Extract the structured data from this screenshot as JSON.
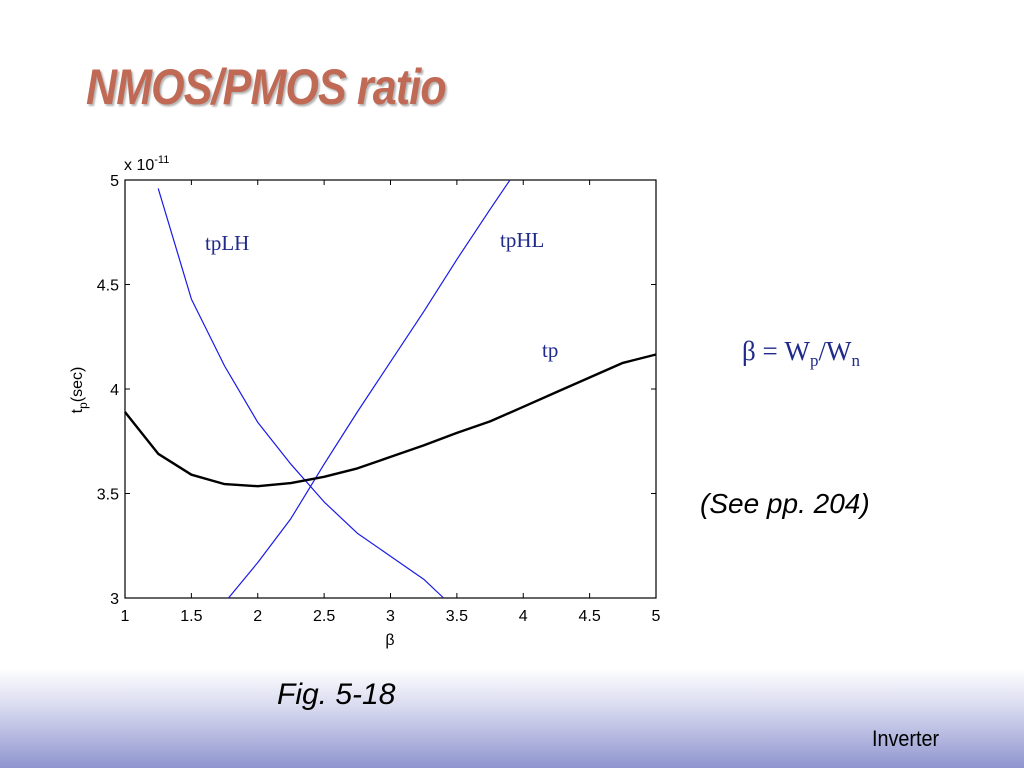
{
  "slide": {
    "title": "NMOS/PMOS ratio",
    "formula": {
      "beta": "β",
      "equals": " = ",
      "w1": "W",
      "sub1": "p",
      "slash": "/",
      "w2": "W",
      "sub2": "n"
    },
    "note": "(See pp. 204)",
    "caption": "Fig. 5-18",
    "footer": "Inverter",
    "colors": {
      "title": "#c06a55",
      "annotation": "#1f2a8a",
      "series_thin": "#1a1ae6",
      "series_thick": "#000000"
    }
  },
  "chart_data": {
    "type": "line",
    "xlabel": "β",
    "ylabel_main": "t",
    "ylabel_sub": "p",
    "ylabel_tail": "(sec)",
    "multiplier_base": "x 10",
    "multiplier_exp": "-11",
    "xlim": [
      1,
      5
    ],
    "ylim": [
      3,
      5
    ],
    "x_ticks": [
      "1",
      "1.5",
      "2",
      "2.5",
      "3",
      "3.5",
      "4",
      "4.5",
      "5"
    ],
    "y_ticks": [
      "3",
      "3.5",
      "4",
      "4.5",
      "5"
    ],
    "grid": false,
    "series": [
      {
        "name": "tpLH",
        "points": [
          [
            1.25,
            4.96
          ],
          [
            1.5,
            4.43
          ],
          [
            1.75,
            4.11
          ],
          [
            2.0,
            3.84
          ],
          [
            2.25,
            3.64
          ],
          [
            2.5,
            3.46
          ],
          [
            2.75,
            3.31
          ],
          [
            3.0,
            3.2
          ],
          [
            3.25,
            3.09
          ],
          [
            3.4,
            3.0
          ]
        ]
      },
      {
        "name": "tpHL",
        "points": [
          [
            1.78,
            3.0
          ],
          [
            2.0,
            3.17
          ],
          [
            2.25,
            3.38
          ],
          [
            2.5,
            3.64
          ],
          [
            2.75,
            3.89
          ],
          [
            3.0,
            4.13
          ],
          [
            3.25,
            4.37
          ],
          [
            3.5,
            4.62
          ],
          [
            3.75,
            4.86
          ],
          [
            3.9,
            5.0
          ]
        ]
      },
      {
        "name": "tp",
        "points": [
          [
            1.0,
            3.89
          ],
          [
            1.25,
            3.69
          ],
          [
            1.5,
            3.59
          ],
          [
            1.75,
            3.545
          ],
          [
            2.0,
            3.535
          ],
          [
            2.25,
            3.55
          ],
          [
            2.5,
            3.58
          ],
          [
            2.75,
            3.62
          ],
          [
            3.0,
            3.675
          ],
          [
            3.25,
            3.73
          ],
          [
            3.5,
            3.79
          ],
          [
            3.75,
            3.845
          ],
          [
            4.0,
            3.915
          ],
          [
            4.25,
            3.985
          ],
          [
            4.5,
            4.055
          ],
          [
            4.75,
            4.125
          ],
          [
            5.0,
            4.165
          ]
        ]
      }
    ]
  }
}
